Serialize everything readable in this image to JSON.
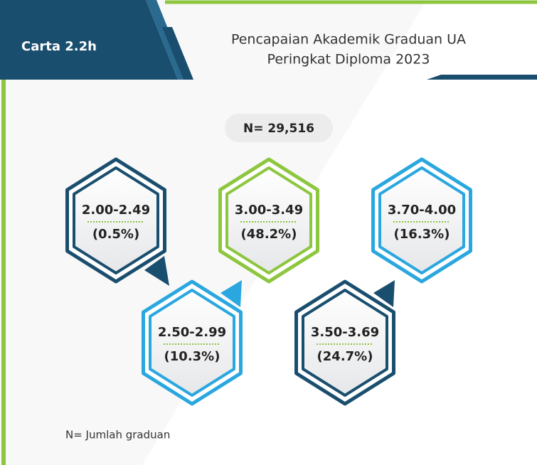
{
  "header": {
    "label": "Carta 2.2h",
    "title": [
      "Pencapaian Akademik Graduan UA",
      "Peringkat Diploma 2023"
    ]
  },
  "total": "N= 29,516",
  "items": [
    {
      "range": "2.00-2.49",
      "percent": "(0.5%)"
    },
    {
      "range": "3.00-3.49",
      "percent": "(48.2%)"
    },
    {
      "range": "3.70-4.00",
      "percent": "(16.3%)"
    },
    {
      "range": "2.50-2.99",
      "percent": "(10.3%)"
    },
    {
      "range": "3.50-3.69",
      "percent": "(24.7%)"
    }
  ],
  "footnote": "N= Jumlah graduan"
}
